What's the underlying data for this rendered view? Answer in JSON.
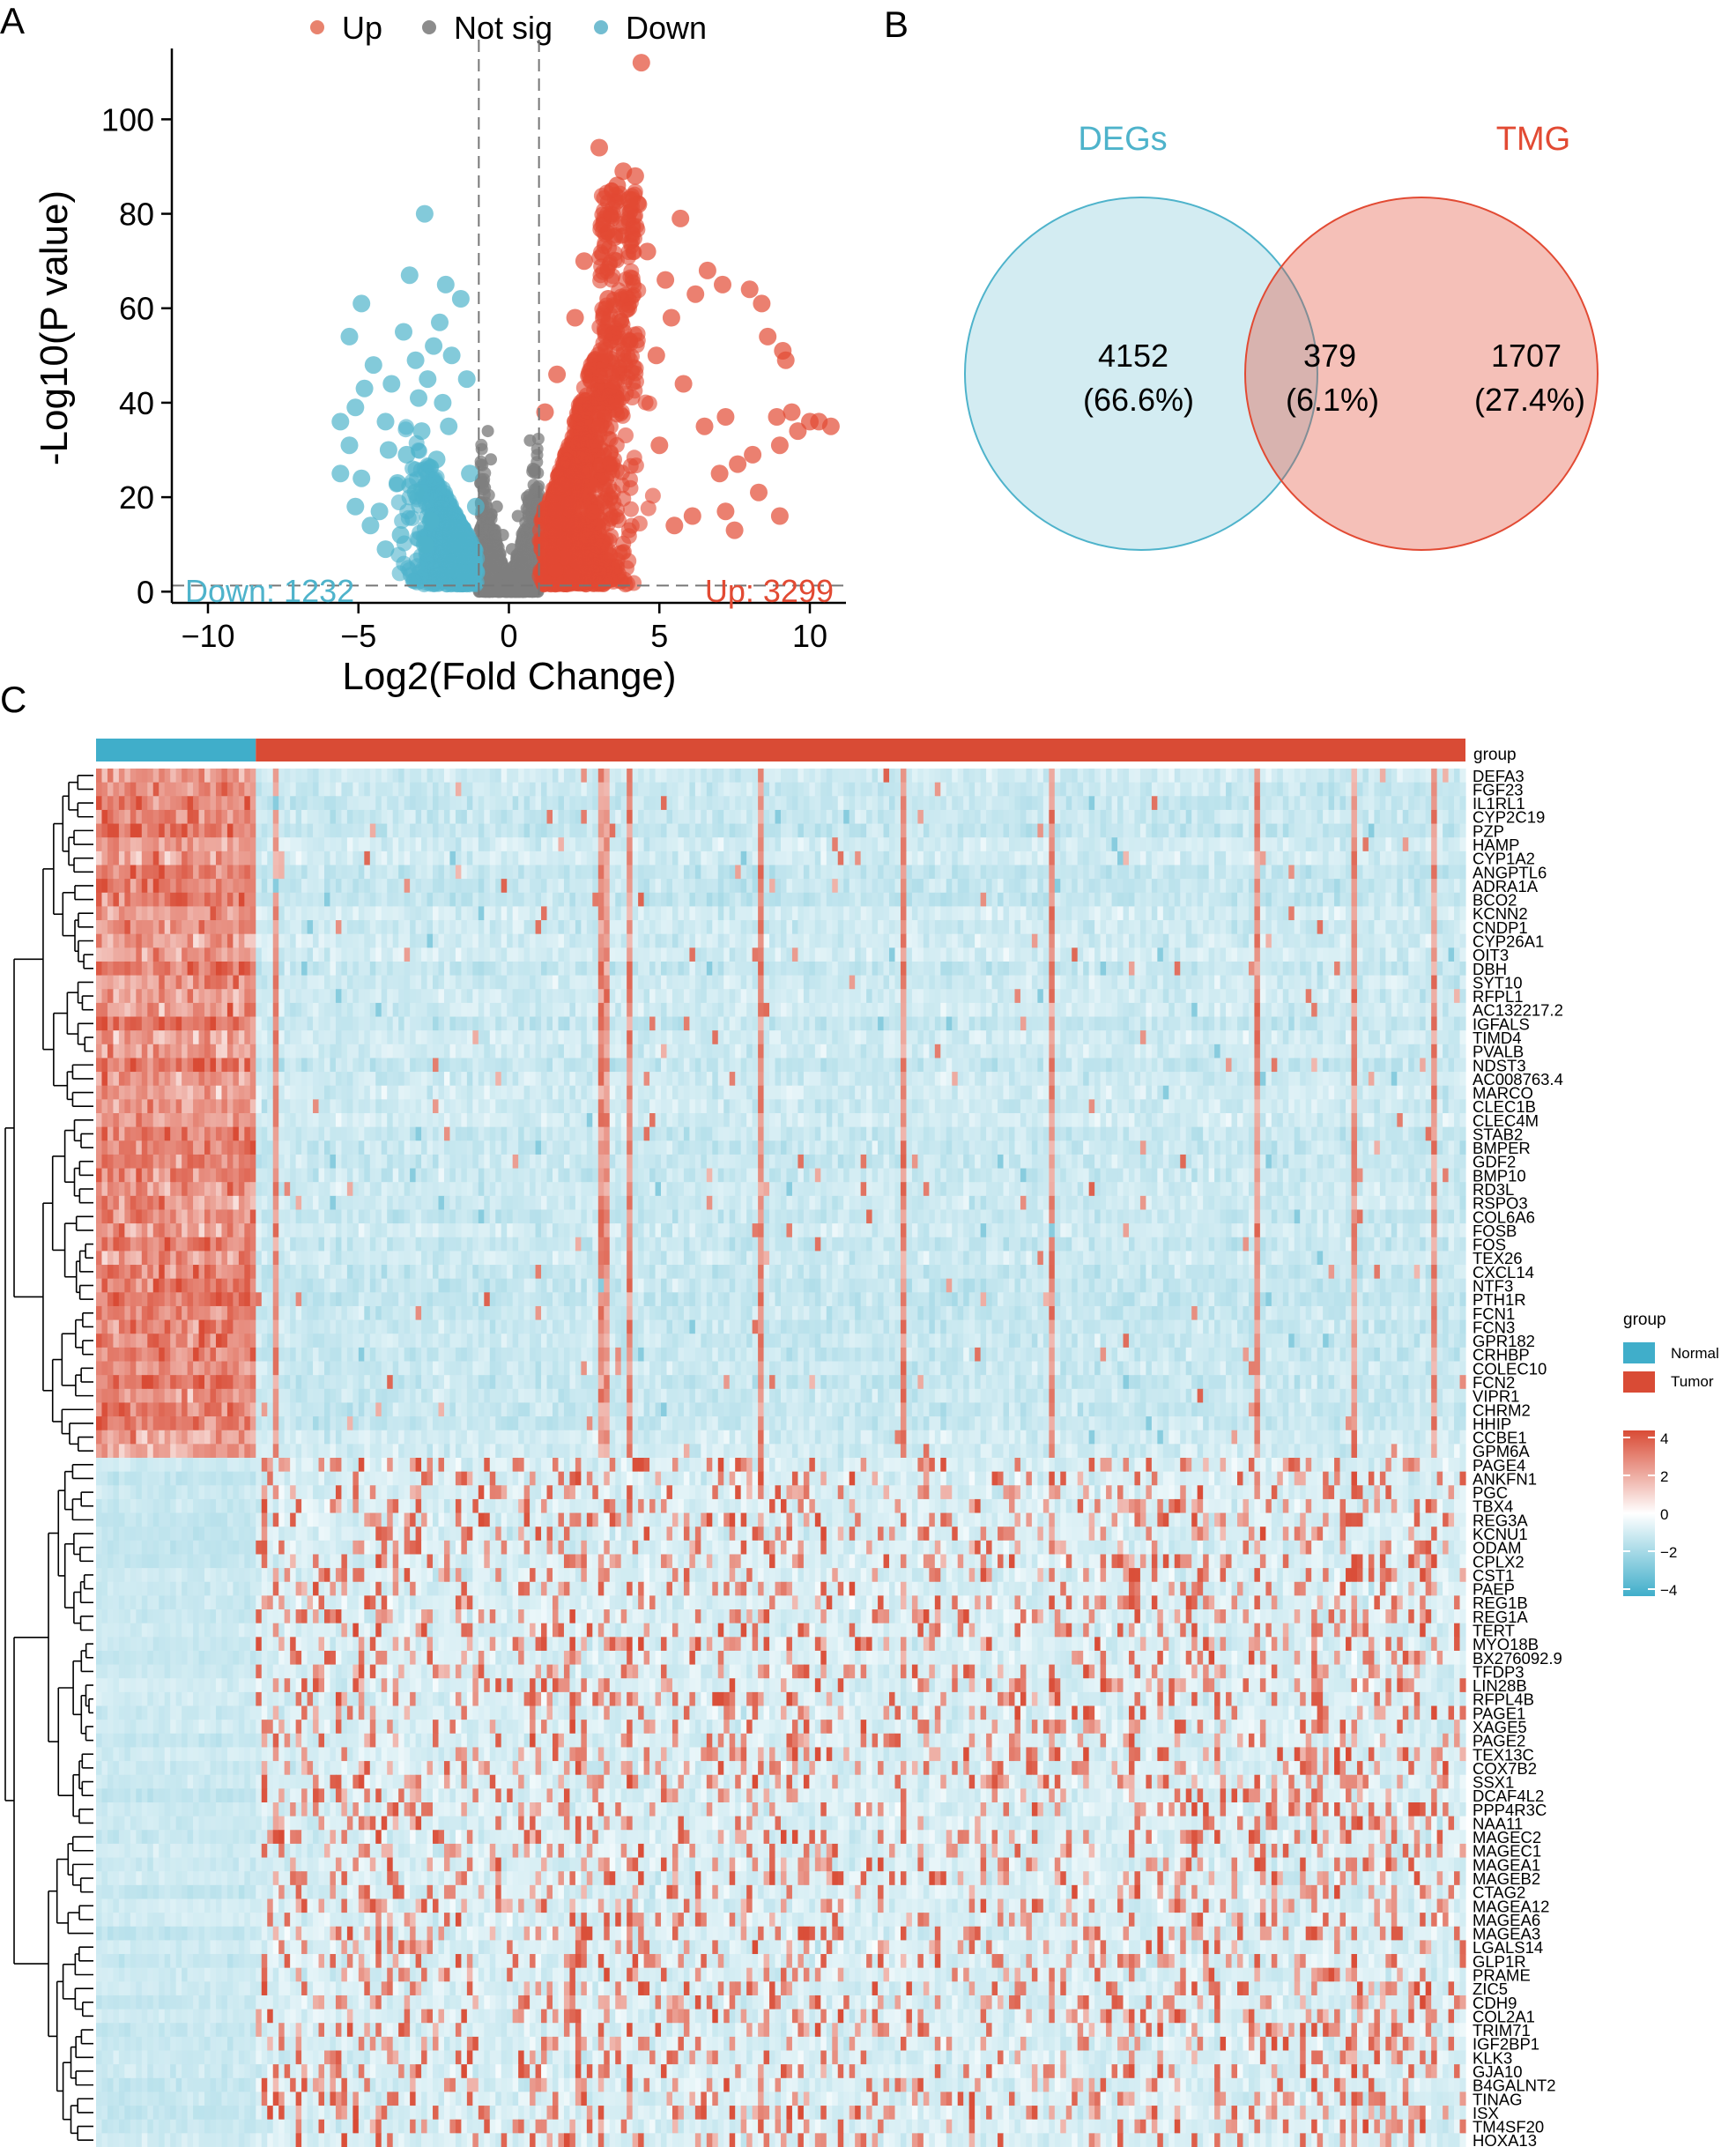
{
  "chart_data": [
    {
      "type": "scatter",
      "panel": "A",
      "xlabel": "Log2(Fold Change)",
      "ylabel": "-Log10(P value)",
      "xlim": [
        -11.2,
        11.2
      ],
      "ylim": [
        -2,
        115
      ],
      "x_ticks": [
        -10,
        -5,
        0,
        5,
        10
      ],
      "y_ticks": [
        0,
        20,
        40,
        60,
        80,
        100
      ],
      "legend": [
        {
          "label": "Up",
          "color": "#E8836E"
        },
        {
          "label": "Not sig",
          "color": "#8C8C8C"
        },
        {
          "label": "Down",
          "color": "#73BDD1"
        }
      ],
      "fc_cutoffs": [
        -1,
        1
      ],
      "p_cutoff": 1.3,
      "counts": {
        "down_label": "Down: 1232",
        "up_label": "Up: 3299"
      },
      "colors": {
        "up": "#E24A33",
        "down": "#4EB3CB",
        "not_sig": "#7F7F7F"
      },
      "highlighted_points": {
        "up": [
          [
            4.4,
            112
          ],
          [
            3.0,
            94
          ],
          [
            3.8,
            89
          ],
          [
            4.2,
            88
          ],
          [
            3.6,
            86
          ],
          [
            4.0,
            83
          ],
          [
            4.3,
            82
          ],
          [
            5.7,
            79
          ],
          [
            6.6,
            68
          ],
          [
            7.1,
            65
          ],
          [
            6.2,
            63
          ],
          [
            8.0,
            64
          ],
          [
            8.4,
            61
          ],
          [
            5.4,
            58
          ],
          [
            8.6,
            54
          ],
          [
            9.1,
            51
          ],
          [
            9.2,
            49
          ],
          [
            7.2,
            37
          ],
          [
            8.9,
            37
          ],
          [
            9.4,
            38
          ],
          [
            10.0,
            36
          ],
          [
            10.3,
            36
          ],
          [
            10.7,
            35
          ],
          [
            9.6,
            34
          ],
          [
            9.0,
            31
          ],
          [
            8.1,
            29
          ],
          [
            7.6,
            27
          ],
          [
            7.0,
            25
          ],
          [
            8.3,
            21
          ],
          [
            7.2,
            17
          ],
          [
            7.5,
            13
          ],
          [
            9.0,
            16
          ],
          [
            6.1,
            16
          ],
          [
            5.5,
            14
          ],
          [
            5.0,
            31
          ],
          [
            6.5,
            35
          ],
          [
            5.8,
            44
          ],
          [
            4.9,
            50
          ],
          [
            3.3,
            62
          ],
          [
            2.2,
            58
          ],
          [
            1.6,
            46
          ],
          [
            1.2,
            38
          ],
          [
            2.5,
            70
          ],
          [
            3.5,
            75
          ],
          [
            4.6,
            72
          ],
          [
            5.2,
            66
          ]
        ],
        "down": [
          [
            -2.8,
            80
          ],
          [
            -4.9,
            61
          ],
          [
            -3.3,
            67
          ],
          [
            -2.1,
            65
          ],
          [
            -2.3,
            57
          ],
          [
            -3.5,
            55
          ],
          [
            -5.3,
            54
          ],
          [
            -2.5,
            52
          ],
          [
            -3.1,
            49
          ],
          [
            -4.5,
            48
          ],
          [
            -2.7,
            45
          ],
          [
            -3.9,
            44
          ],
          [
            -4.8,
            43
          ],
          [
            -5.1,
            39
          ],
          [
            -3.0,
            41
          ],
          [
            -2.2,
            40
          ],
          [
            -5.6,
            36
          ],
          [
            -4.1,
            36
          ],
          [
            -2.9,
            34
          ],
          [
            -5.3,
            31
          ],
          [
            -4.0,
            30
          ],
          [
            -3.4,
            29
          ],
          [
            -2.4,
            28
          ],
          [
            -5.6,
            25
          ],
          [
            -4.9,
            24
          ],
          [
            -3.7,
            23
          ],
          [
            -3.1,
            21
          ],
          [
            -5.1,
            18
          ],
          [
            -4.3,
            17
          ],
          [
            -4.6,
            14
          ],
          [
            -2.6,
            15
          ],
          [
            -3.6,
            12
          ],
          [
            -2.8,
            10
          ],
          [
            -4.1,
            9
          ],
          [
            -1.9,
            50
          ],
          [
            -1.6,
            62
          ],
          [
            -1.4,
            45
          ],
          [
            -2.0,
            35
          ],
          [
            -1.3,
            25
          ],
          [
            -1.1,
            18
          ]
        ],
        "not_sig": [
          [
            -0.6,
            28
          ],
          [
            -0.8,
            22
          ],
          [
            -0.4,
            18
          ],
          [
            0.3,
            16
          ],
          [
            0.6,
            20
          ],
          [
            0.8,
            26
          ],
          [
            -0.2,
            12
          ],
          [
            0.1,
            9
          ],
          [
            -0.7,
            34
          ],
          [
            0.7,
            32
          ]
        ]
      }
    },
    {
      "type": "venn",
      "panel": "B",
      "sets": [
        {
          "label": "DEGs",
          "color": "#4EB3CB"
        },
        {
          "label": "TMG",
          "color": "#E24A33"
        }
      ],
      "regions": [
        {
          "value": "4152",
          "percent": "(66.6%)"
        },
        {
          "value": "379",
          "percent": "(6.1%)"
        },
        {
          "value": "1707",
          "percent": "(27.4%)"
        }
      ]
    },
    {
      "type": "heatmap",
      "panel": "C",
      "annotation_label": "group",
      "groups": [
        {
          "label": "Normal",
          "color": "#40AECA",
          "fraction": 0.117
        },
        {
          "label": "Tumor",
          "color": "#D94B35",
          "fraction": 0.883
        }
      ],
      "legend_title": "group",
      "color_scale": {
        "min": -4,
        "max": 4,
        "ticks": [
          "4",
          "2",
          "0",
          "−2",
          "−4"
        ],
        "low": "#40AECA",
        "mid": "#FFFFFF",
        "high": "#D94B35"
      },
      "n_rows_down_in_tumor": 50,
      "genes": [
        "DEFA3",
        "FGF23",
        "IL1RL1",
        "CYP2C19",
        "PZP",
        "HAMP",
        "CYP1A2",
        "ANGPTL6",
        "ADRA1A",
        "BCO2",
        "KCNN2",
        "CNDP1",
        "CYP26A1",
        "OIT3",
        "DBH",
        "SYT10",
        "RFPL1",
        "AC132217.2",
        "IGFALS",
        "TIMD4",
        "PVALB",
        "NDST3",
        "AC008763.4",
        "MARCO",
        "CLEC1B",
        "CLEC4M",
        "STAB2",
        "BMPER",
        "GDF2",
        "BMP10",
        "RD3L",
        "RSPO3",
        "COL6A6",
        "FOSB",
        "FOS",
        "TEX26",
        "CXCL14",
        "NTF3",
        "PTH1R",
        "FCN1",
        "FCN3",
        "GPR182",
        "CRHBP",
        "COLEC10",
        "FCN2",
        "VIPR1",
        "CHRM2",
        "HHIP",
        "CCBE1",
        "GPM6A",
        "PAGE4",
        "ANKFN1",
        "PGC",
        "TBX4",
        "REG3A",
        "KCNU1",
        "ODAM",
        "CPLX2",
        "CST1",
        "PAEP",
        "REG1B",
        "REG1A",
        "TERT",
        "MYO18B",
        "BX276092.9",
        "TFDP3",
        "LIN28B",
        "RFPL4B",
        "PAGE1",
        "XAGE5",
        "PAGE2",
        "TEX13C",
        "COX7B2",
        "SSX1",
        "DCAF4L2",
        "PPP4R3C",
        "NAA11",
        "MAGEC2",
        "MAGEC1",
        "MAGEA1",
        "MAGEB2",
        "CTAG2",
        "MAGEA12",
        "MAGEA6",
        "MAGEA3",
        "LGALS14",
        "GLP1R",
        "PRAME",
        "ZIC5",
        "CDH9",
        "COL2A1",
        "TRIM71",
        "IGF2BP1",
        "KLK3",
        "GJA10",
        "B4GALNT2",
        "TINAG",
        "ISX",
        "TM4SF20",
        "HOXA13"
      ]
    }
  ],
  "panel_labels": {
    "a": "A",
    "b": "B",
    "c": "C"
  }
}
